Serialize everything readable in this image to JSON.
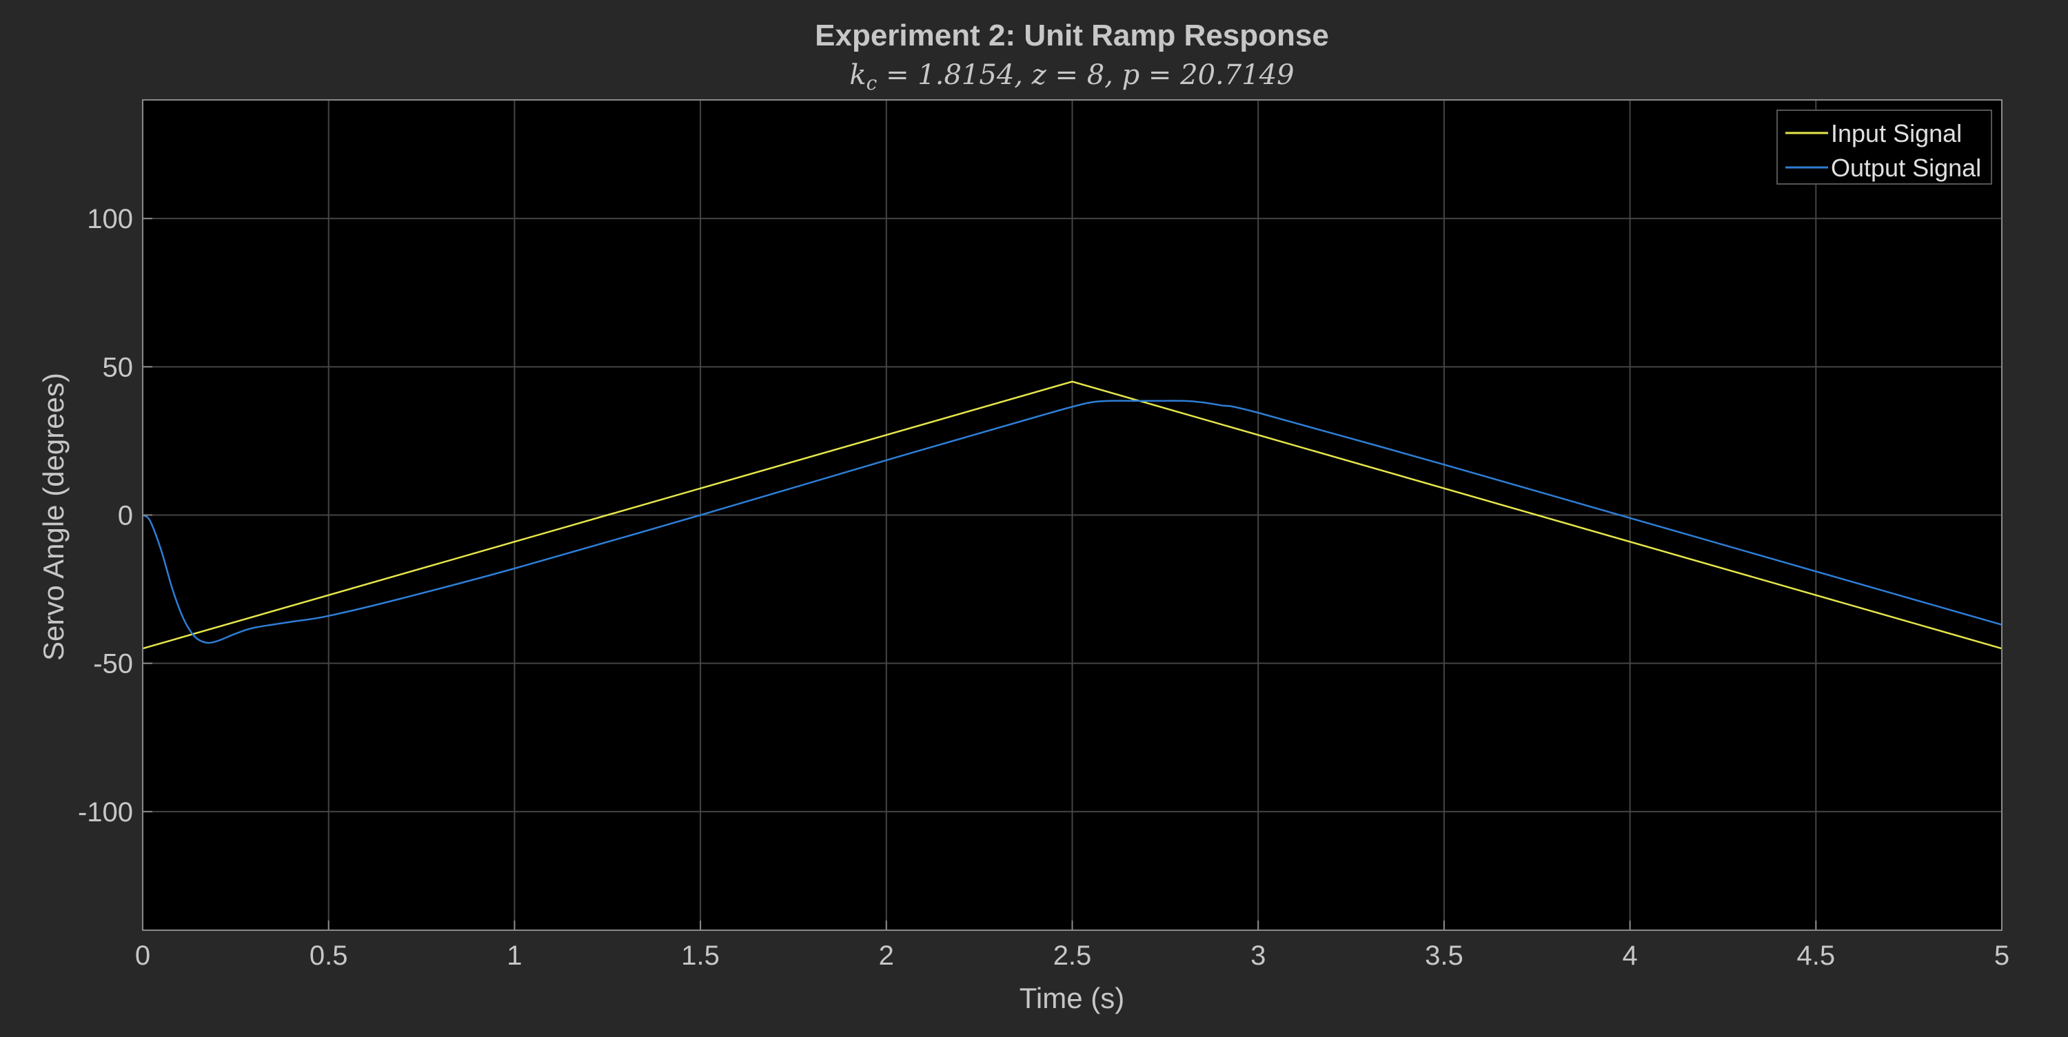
{
  "chart_data": {
    "type": "line",
    "title": "Experiment 2: Unit Ramp Response",
    "subtitle": "k_c = 1.8154, z = 8, p = 20.7149",
    "xlabel": "Time (s)",
    "ylabel": "Servo Angle (degrees)",
    "xlim": [
      0,
      5
    ],
    "ylim": [
      -140,
      140
    ],
    "xticks": [
      0,
      0.5,
      1,
      1.5,
      2,
      2.5,
      3,
      3.5,
      4,
      4.5,
      5
    ],
    "xtick_labels": [
      "0",
      "0.5",
      "1",
      "1.5",
      "2",
      "2.5",
      "3",
      "3.5",
      "4",
      "4.5",
      "5"
    ],
    "yticks": [
      100,
      50,
      0,
      -50,
      -100
    ],
    "ytick_labels": [
      "100",
      "50",
      "0",
      "-50",
      "-100"
    ],
    "grid": true,
    "legend_position": "top-right",
    "colors": {
      "figure_background": "#282828",
      "axes_background": "#000000",
      "grid": "#444444",
      "text": "#c7c7c7"
    },
    "series": [
      {
        "name": "Input Signal",
        "color": "#e6e64c",
        "x": [
          0,
          2.5,
          5
        ],
        "y": [
          -45,
          45,
          -45
        ]
      },
      {
        "name": "Output Signal",
        "color": "#2e7ed6",
        "x": [
          0,
          0.02,
          0.05,
          0.08,
          0.11,
          0.14,
          0.17,
          0.2,
          0.25,
          0.3,
          0.4,
          0.5,
          0.7,
          1,
          1.5,
          2,
          2.4,
          2.5,
          2.55,
          2.6,
          2.7,
          2.8,
          2.85,
          2.9,
          3,
          3.5,
          4,
          4.5,
          5
        ],
        "y": [
          0,
          -2,
          -12,
          -25,
          -35,
          -41,
          -43,
          -42.5,
          -40,
          -38,
          -36,
          -34,
          -28,
          -18,
          0,
          18.5,
          33,
          36.5,
          38,
          38.5,
          38.5,
          38.5,
          38,
          37,
          34.5,
          17,
          -1,
          -19,
          -37
        ]
      }
    ]
  }
}
